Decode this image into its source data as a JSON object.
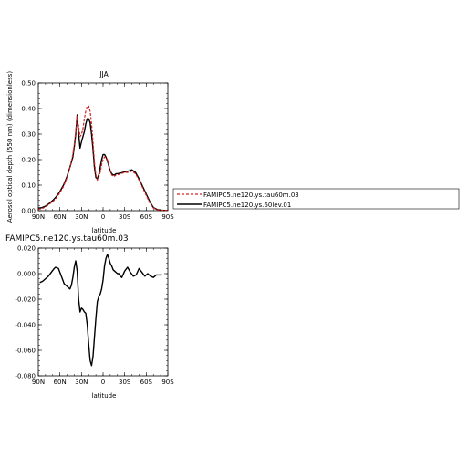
{
  "chart_data": [
    {
      "type": "line",
      "title": "JJA",
      "xlabel": "latitude",
      "ylabel": "Aerosol optical depth (550 nm) (dimensionless)",
      "xlim": [
        90,
        -90
      ],
      "ylim": [
        0.0,
        0.5
      ],
      "x_ticks": [
        90,
        60,
        30,
        0,
        -30,
        -60,
        -90
      ],
      "x_tick_labels": [
        "90N",
        "60N",
        "30N",
        "0",
        "30S",
        "60S",
        "90S"
      ],
      "y_ticks": [
        0.0,
        0.1,
        0.2,
        0.3,
        0.4,
        0.5
      ],
      "y_tick_labels": [
        "0.00",
        "0.10",
        "0.20",
        "0.30",
        "0.40",
        "0.50"
      ],
      "legend_position": "right",
      "series": [
        {
          "name": "FAMIPC5.ne120.ys.tau60m.03",
          "color": "#d62020",
          "dash": "dashed",
          "x": [
            90,
            85,
            80,
            75,
            70,
            65,
            60,
            55,
            50,
            45,
            42,
            40,
            38,
            36,
            34,
            32,
            30,
            28,
            26,
            24,
            22,
            20,
            18,
            16,
            14,
            12,
            10,
            8,
            6,
            4,
            2,
            0,
            -2,
            -4,
            -6,
            -8,
            -10,
            -12,
            -14,
            -16,
            -18,
            -20,
            -25,
            -30,
            -35,
            -40,
            -45,
            -50,
            -55,
            -60,
            -65,
            -70,
            -75,
            -80,
            -85,
            -90
          ],
          "y": [
            0.005,
            0.008,
            0.015,
            0.025,
            0.035,
            0.05,
            0.07,
            0.095,
            0.13,
            0.18,
            0.22,
            0.26,
            0.31,
            0.37,
            0.33,
            0.29,
            0.3,
            0.32,
            0.36,
            0.39,
            0.41,
            0.41,
            0.39,
            0.34,
            0.27,
            0.19,
            0.14,
            0.12,
            0.13,
            0.15,
            0.18,
            0.2,
            0.21,
            0.21,
            0.2,
            0.18,
            0.155,
            0.14,
            0.135,
            0.135,
            0.14,
            0.14,
            0.145,
            0.15,
            0.15,
            0.155,
            0.145,
            0.12,
            0.09,
            0.06,
            0.03,
            0.01,
            0.004,
            0.002,
            0.001,
            0.001
          ]
        },
        {
          "name": "FAMIPC5.ne120.ys.60lev.01",
          "color": "#000000",
          "dash": "solid",
          "x": [
            90,
            85,
            80,
            75,
            70,
            65,
            60,
            55,
            50,
            45,
            42,
            40,
            38,
            36,
            34,
            32,
            30,
            28,
            26,
            24,
            22,
            20,
            18,
            16,
            14,
            12,
            10,
            8,
            6,
            4,
            2,
            0,
            -2,
            -4,
            -6,
            -8,
            -10,
            -12,
            -14,
            -16,
            -18,
            -20,
            -25,
            -30,
            -35,
            -40,
            -45,
            -50,
            -55,
            -60,
            -65,
            -70,
            -75,
            -80,
            -85,
            -90
          ],
          "y": [
            0.01,
            0.012,
            0.018,
            0.028,
            0.04,
            0.055,
            0.075,
            0.1,
            0.135,
            0.18,
            0.21,
            0.25,
            0.3,
            0.375,
            0.3,
            0.245,
            0.27,
            0.29,
            0.31,
            0.34,
            0.36,
            0.36,
            0.345,
            0.3,
            0.24,
            0.17,
            0.13,
            0.125,
            0.14,
            0.17,
            0.2,
            0.22,
            0.22,
            0.21,
            0.195,
            0.175,
            0.155,
            0.145,
            0.14,
            0.14,
            0.145,
            0.145,
            0.148,
            0.152,
            0.155,
            0.16,
            0.15,
            0.125,
            0.095,
            0.065,
            0.035,
            0.012,
            0.005,
            0.002,
            0.001,
            0.001
          ]
        }
      ]
    },
    {
      "type": "line",
      "title": "FAMIPC5.ne120.ys.tau60m.03",
      "xlabel": "latitude",
      "ylabel": "",
      "xlim": [
        90,
        -90
      ],
      "ylim": [
        -0.08,
        0.02
      ],
      "x_ticks": [
        90,
        60,
        30,
        0,
        -30,
        -60,
        -90
      ],
      "x_tick_labels": [
        "90N",
        "60N",
        "30N",
        "0",
        "30S",
        "60S",
        "90S"
      ],
      "y_ticks": [
        -0.08,
        -0.06,
        -0.04,
        -0.02,
        0.0,
        0.02
      ],
      "y_tick_labels": [
        "-0.080",
        "-0.060",
        "-0.040",
        "-0.020",
        "0.000",
        "0.020"
      ],
      "series": [
        {
          "color": "#000000",
          "dash": "solid",
          "x": [
            88,
            84,
            80,
            76,
            72,
            68,
            66,
            62,
            58,
            54,
            50,
            46,
            44,
            42,
            40,
            38,
            36,
            34,
            32,
            30,
            28,
            26,
            24,
            22,
            20,
            18,
            16,
            14,
            12,
            10,
            8,
            6,
            4,
            2,
            0,
            -2,
            -4,
            -6,
            -8,
            -10,
            -12,
            -14,
            -16,
            -18,
            -20,
            -22,
            -24,
            -26,
            -30,
            -34,
            -38,
            -42,
            -46,
            -50,
            -54,
            -58,
            -62,
            -66,
            -70,
            -74,
            -78,
            -82
          ],
          "y": [
            -0.007,
            -0.006,
            -0.004,
            -0.002,
            0.001,
            0.004,
            0.005,
            0.004,
            -0.002,
            -0.008,
            -0.01,
            -0.012,
            -0.009,
            -0.003,
            0.005,
            0.01,
            0.002,
            -0.02,
            -0.03,
            -0.027,
            -0.028,
            -0.03,
            -0.031,
            -0.04,
            -0.055,
            -0.068,
            -0.072,
            -0.065,
            -0.05,
            -0.035,
            -0.022,
            -0.018,
            -0.016,
            -0.012,
            -0.005,
            0.006,
            0.012,
            0.015,
            0.012,
            0.008,
            0.006,
            0.003,
            0.002,
            0.001,
            0.0,
            0.0,
            -0.002,
            -0.003,
            0.002,
            0.005,
            0.001,
            -0.002,
            -0.001,
            0.004,
            0.001,
            -0.002,
            0.0,
            -0.002,
            -0.003,
            -0.001,
            -0.001,
            -0.001
          ]
        }
      ]
    }
  ]
}
